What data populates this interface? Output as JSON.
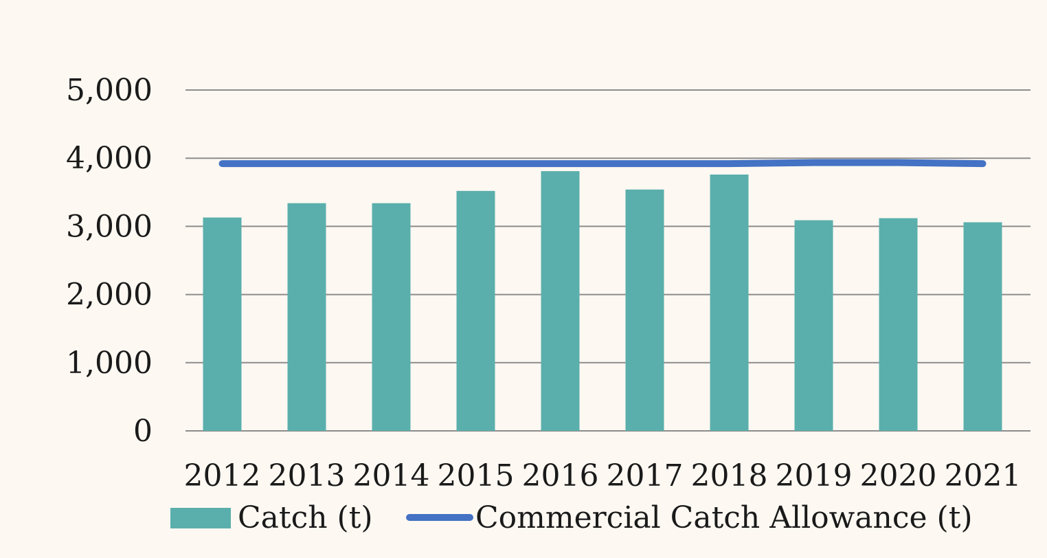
{
  "chart_data": {
    "type": "bar",
    "categories": [
      "2012",
      "2013",
      "2014",
      "2015",
      "2016",
      "2017",
      "2018",
      "2019",
      "2020",
      "2021"
    ],
    "series": [
      {
        "name": "Catch (t)",
        "type": "bar",
        "color": "#5aafac",
        "values": [
          3130,
          3340,
          3340,
          3520,
          3810,
          3540,
          3760,
          3090,
          3120,
          3060
        ]
      },
      {
        "name": "Commercial Catch Allowance (t)",
        "type": "line",
        "color": "#4472c4",
        "values": [
          3920,
          3920,
          3920,
          3920,
          3920,
          3920,
          3920,
          3935,
          3935,
          3920
        ]
      }
    ],
    "y_ticks": [
      "0",
      "1,000",
      "2,000",
      "3,000",
      "4,000",
      "5,000"
    ],
    "ylim": [
      0,
      5000
    ],
    "grid": true,
    "legend_position": "bottom"
  }
}
